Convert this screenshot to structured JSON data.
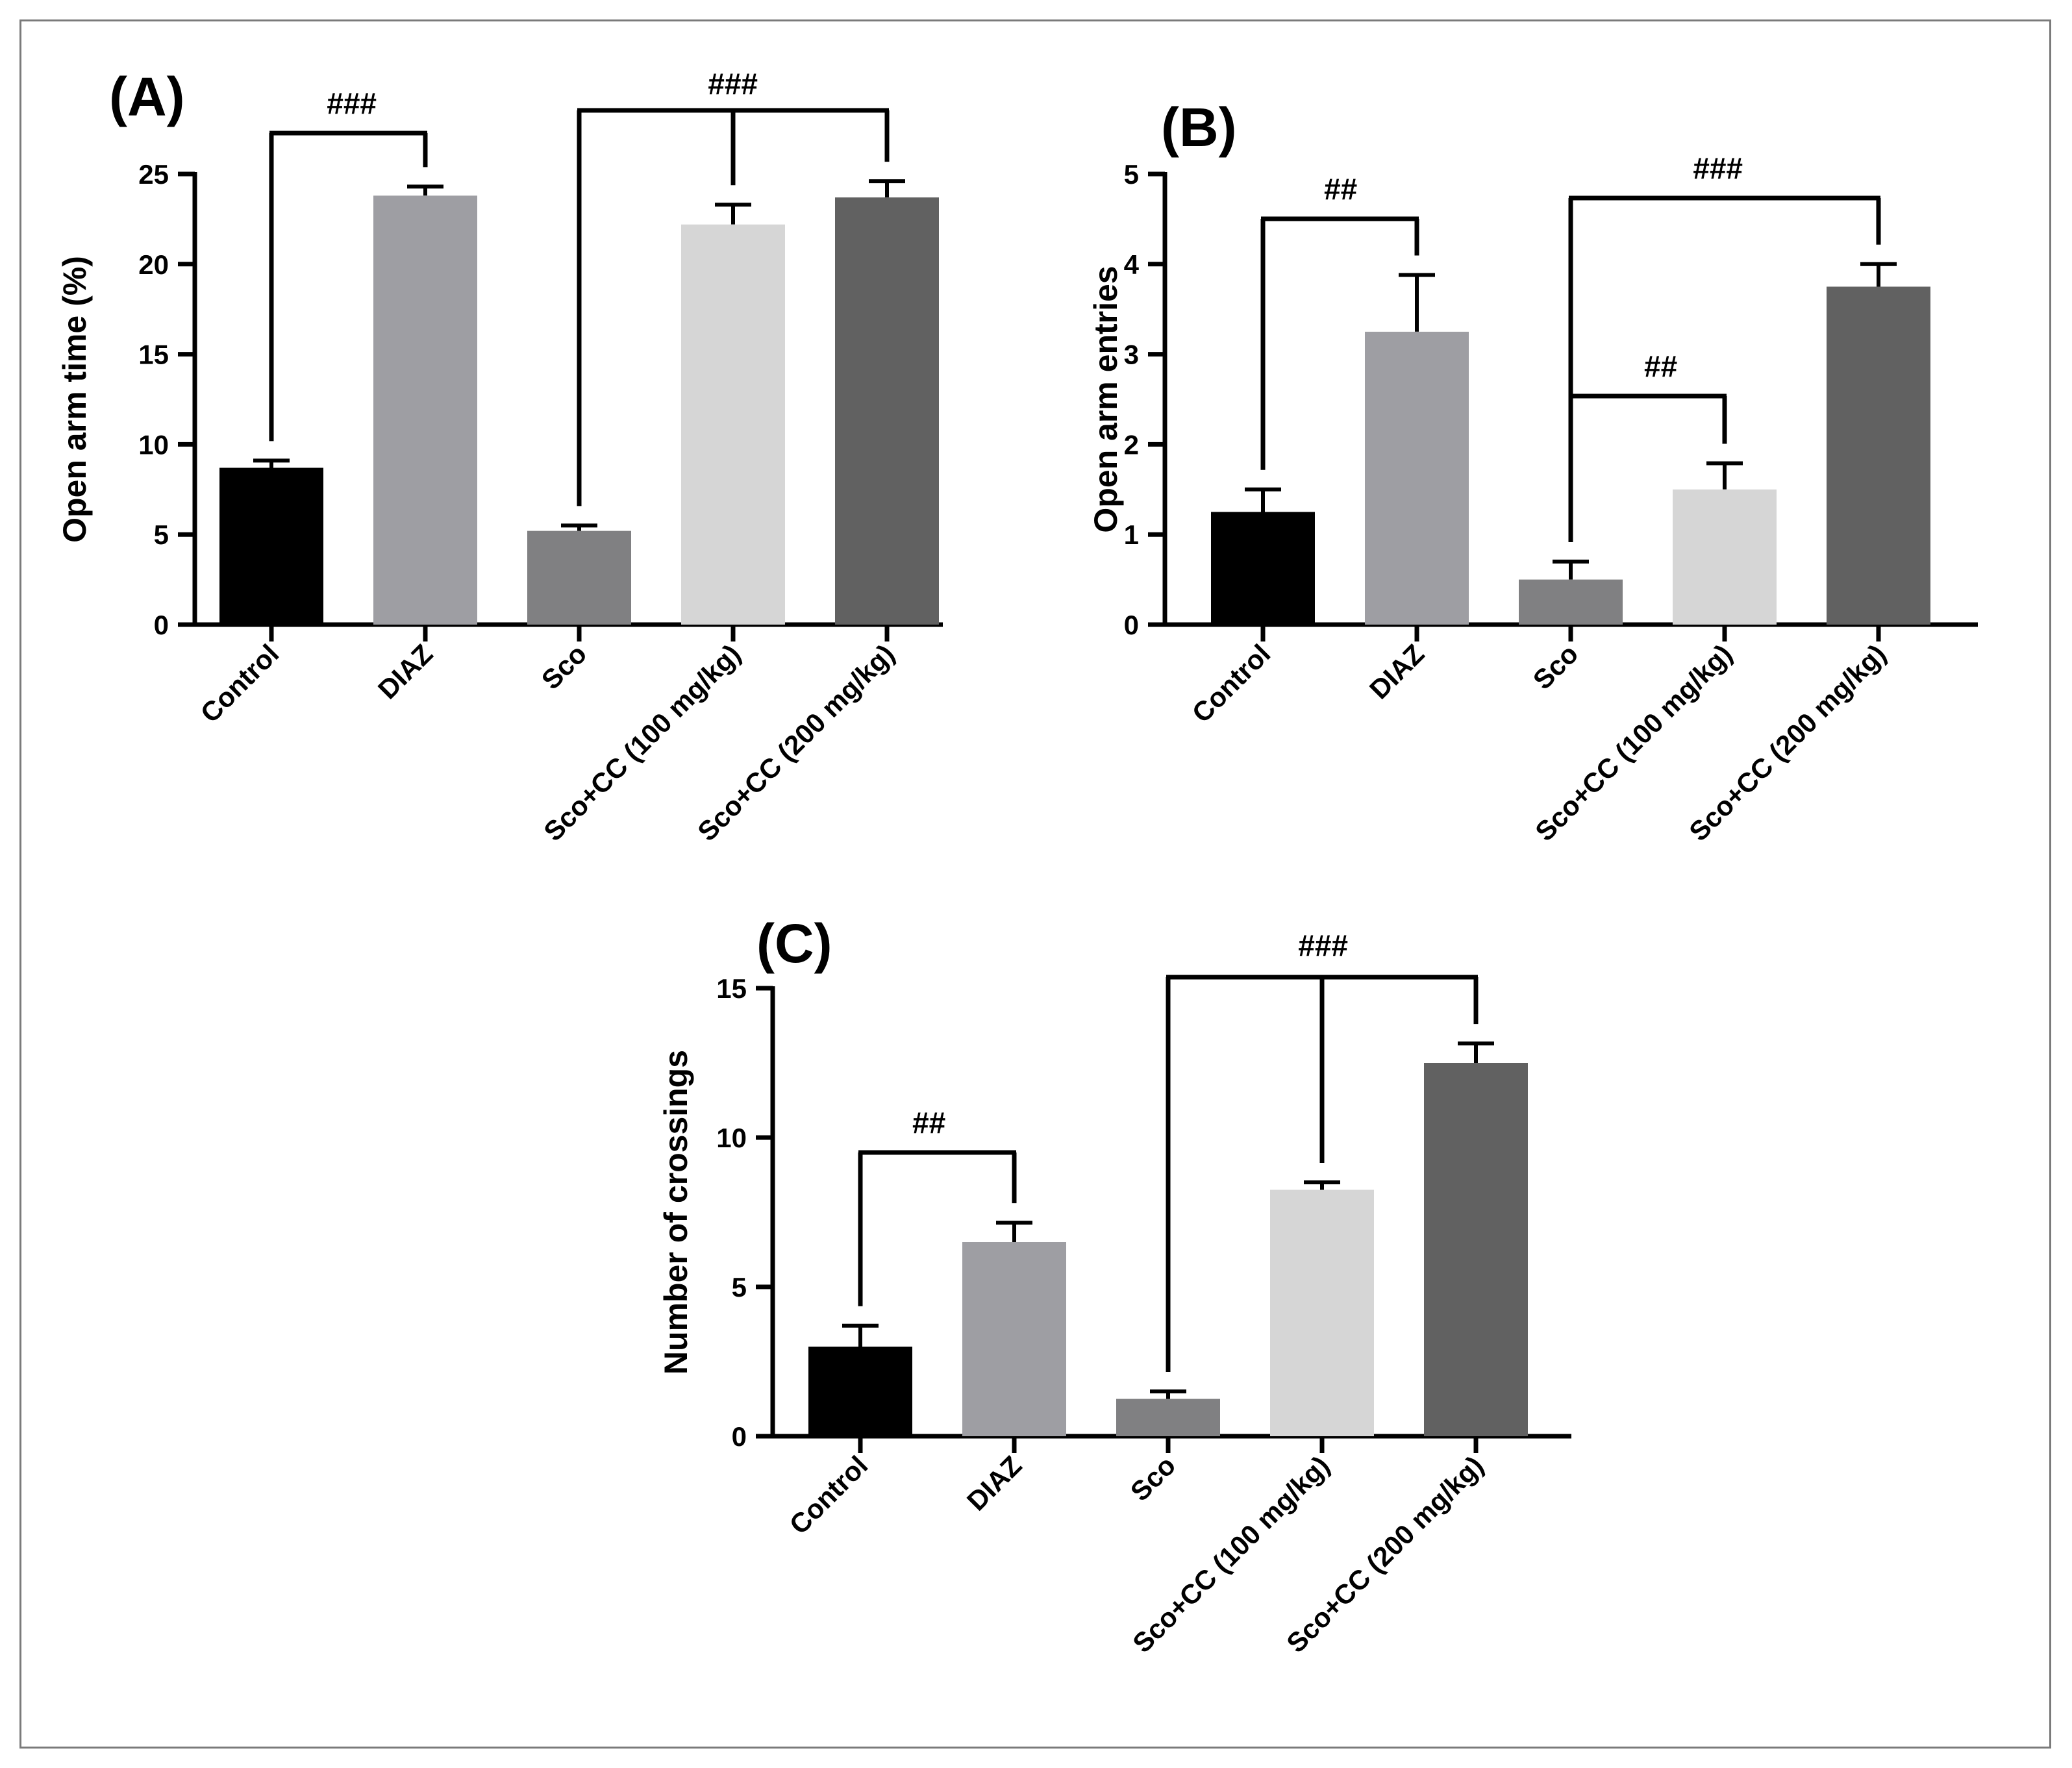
{
  "colors": {
    "Control": "#000000",
    "DIAZ": "#9e9ea3",
    "Sco": "#808082",
    "Sco+CC (100 mg/kg)": "#d6d6d6",
    "Sco+CC (200 mg/kg)": "#616161"
  },
  "chart_data": [
    {
      "type": "bar",
      "panel_label": "(A)",
      "ylabel": "Open arm time (%)",
      "xlabel": "",
      "categories": [
        "Control",
        "DIAZ",
        "Sco",
        "Sco+CC (100 mg/kg)",
        "Sco+CC (200 mg/kg)"
      ],
      "values": [
        8.7,
        23.8,
        5.2,
        22.2,
        23.7
      ],
      "errors": [
        0.4,
        0.5,
        0.3,
        1.1,
        0.9
      ],
      "ylim": [
        0,
        25
      ],
      "yticks": [
        "0",
        "5",
        "10",
        "15",
        "20",
        "25"
      ],
      "significance": [
        {
          "label": "###",
          "from": 0,
          "to": [
            1
          ]
        },
        {
          "label": "###",
          "from": 2,
          "to": [
            3,
            4
          ]
        }
      ]
    },
    {
      "type": "bar",
      "panel_label": "(B)",
      "ylabel": "Open arm entries",
      "xlabel": "",
      "categories": [
        "Control",
        "DIAZ",
        "Sco",
        "Sco+CC (100 mg/kg)",
        "Sco+CC (200 mg/kg)"
      ],
      "values": [
        1.25,
        3.25,
        0.5,
        1.5,
        3.75
      ],
      "errors": [
        0.25,
        0.63,
        0.2,
        0.29,
        0.25
      ],
      "ylim": [
        0,
        5
      ],
      "yticks": [
        "0",
        "1",
        "2",
        "3",
        "4",
        "5"
      ],
      "significance": [
        {
          "label": "##",
          "from": 0,
          "to": [
            1
          ]
        },
        {
          "label": "##",
          "from": 2,
          "to": [
            3
          ]
        },
        {
          "label": "###",
          "from": 2,
          "to": [
            4
          ]
        }
      ]
    },
    {
      "type": "bar",
      "panel_label": "(C)",
      "ylabel": "Number of crossings",
      "xlabel": "",
      "categories": [
        "Control",
        "DIAZ",
        "Sco",
        "Sco+CC (100 mg/kg)",
        "Sco+CC (200 mg/kg)"
      ],
      "values": [
        3.0,
        6.5,
        1.25,
        8.25,
        12.5
      ],
      "errors": [
        0.7,
        0.65,
        0.25,
        0.25,
        0.65
      ],
      "ylim": [
        0,
        15
      ],
      "yticks": [
        "0",
        "5",
        "10",
        "15"
      ],
      "significance": [
        {
          "label": "##",
          "from": 0,
          "to": [
            1
          ]
        },
        {
          "label": "###",
          "from": 2,
          "to": [
            3,
            4
          ]
        }
      ]
    }
  ]
}
